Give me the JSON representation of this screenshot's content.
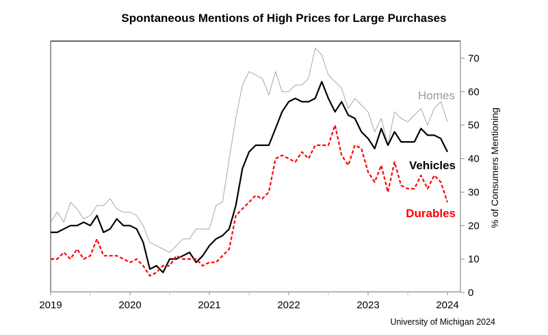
{
  "chart_data": {
    "type": "line",
    "title": "Spontaneous Mentions of High Prices for Large Purchases",
    "xlabel": "",
    "ylabel": "% of Consumers Mentioning",
    "source_note": "University of Michigan 2024",
    "x_start": "2019-01",
    "x_frequency": "monthly",
    "xlim": [
      2019,
      2024.08
    ],
    "ylim": [
      0,
      75
    ],
    "x_ticks": [
      "2019",
      "2020",
      "2021",
      "2022",
      "2023",
      "2024"
    ],
    "y_ticks": [
      "0",
      "10",
      "20",
      "30",
      "40",
      "50",
      "60",
      "70"
    ],
    "grid": false,
    "legend": "inline-right",
    "series": [
      {
        "name": "Homes",
        "color": "#a6a6a6",
        "style": "solid-thin",
        "values": [
          21,
          24,
          21,
          27,
          25,
          22,
          23,
          26,
          26,
          28,
          25,
          24,
          24,
          23,
          20,
          15,
          14,
          13,
          12,
          14,
          16,
          16,
          19,
          19,
          19,
          26,
          27,
          40,
          52,
          62,
          66,
          65,
          64,
          59,
          66,
          60,
          60,
          62,
          62,
          64,
          73,
          71,
          65,
          63,
          61,
          55,
          58,
          56,
          54,
          48,
          52,
          44,
          54,
          52,
          51,
          53,
          55,
          50,
          55,
          57,
          51
        ]
      },
      {
        "name": "Vehicles",
        "color": "#000000",
        "style": "solid-thick",
        "values": [
          18,
          18,
          19,
          20,
          20,
          21,
          20,
          23,
          18,
          19,
          22,
          20,
          20,
          19,
          15,
          7,
          8,
          6,
          10,
          10,
          11,
          12,
          9,
          11,
          14,
          16,
          17,
          19,
          26,
          37,
          42,
          44,
          44,
          44,
          49,
          54,
          57,
          58,
          57,
          57,
          58,
          63,
          58,
          54,
          57,
          53,
          52,
          48,
          46,
          43,
          49,
          44,
          48,
          45,
          45,
          45,
          49,
          47,
          47,
          46,
          42
        ]
      },
      {
        "name": "Durables",
        "color": "#ff0000",
        "style": "dashed",
        "values": [
          10,
          10,
          12,
          10,
          13,
          10,
          11,
          16,
          11,
          11,
          11,
          10,
          9,
          10,
          8,
          5,
          6,
          8,
          8,
          11,
          10,
          10,
          10,
          8,
          9,
          9,
          11,
          13,
          23,
          25,
          27,
          29,
          28,
          30,
          40,
          41,
          40,
          39,
          42,
          40,
          44,
          44,
          44,
          50,
          41,
          38,
          44,
          43,
          36,
          33,
          38,
          30,
          39,
          32,
          31,
          31,
          35,
          31,
          35,
          33,
          27
        ]
      }
    ]
  }
}
